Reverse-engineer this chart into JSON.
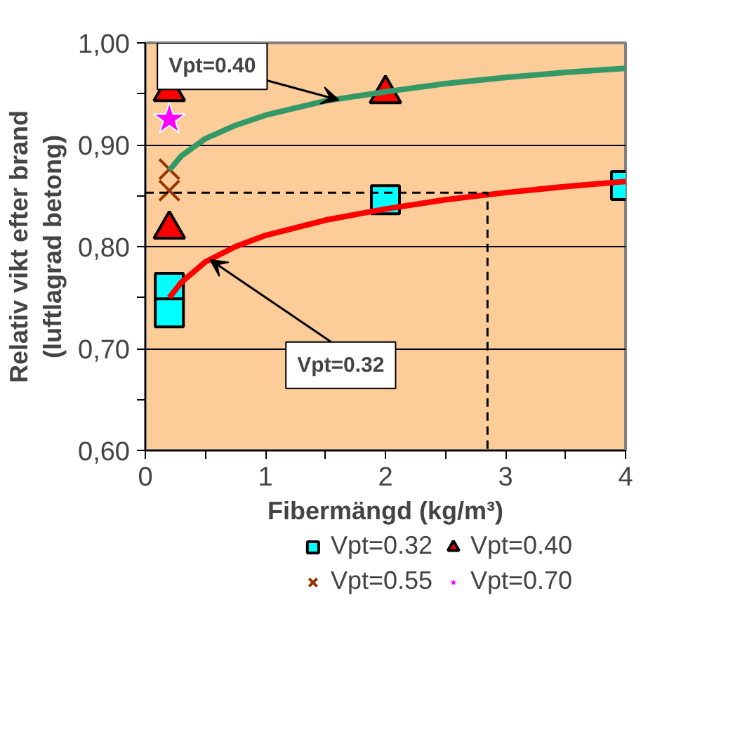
{
  "chart_data": {
    "type": "scatter",
    "xlabel": "Fibermängd (kg/m³)",
    "ylabel": "Relativ vikt efter brand (luftlagrad betong)",
    "xlim": [
      0,
      4
    ],
    "ylim": [
      0.6,
      1.0
    ],
    "xticks": [
      0,
      {
        "value": 0.5,
        "label": null
      },
      1,
      {
        "value": 1.5,
        "label": null
      },
      2,
      {
        "value": 2.5,
        "label": null
      },
      3,
      {
        "value": 3.5,
        "label": null
      },
      4
    ],
    "yticks": [
      {
        "value": 0.6,
        "label": "0,60"
      },
      {
        "value": 0.65,
        "label": null
      },
      {
        "value": 0.7,
        "label": "0,70"
      },
      {
        "value": 0.75,
        "label": null
      },
      {
        "value": 0.8,
        "label": "0,80"
      },
      {
        "value": 0.85,
        "label": null
      },
      {
        "value": 0.9,
        "label": "0,90"
      },
      {
        "value": 0.95,
        "label": null
      },
      {
        "value": 1.0,
        "label": "1,00"
      }
    ],
    "grid": "y",
    "legend": "bottom",
    "series": [
      {
        "name": "Vpt=0.32",
        "color": "#00ffff",
        "marker": "square",
        "x": [
          0.2,
          0.2,
          2,
          4
        ],
        "values": [
          0.76,
          0.735,
          0.846,
          0.86
        ]
      },
      {
        "name": "Vpt=0.40",
        "color": "#ff0000",
        "marker": "triangle",
        "x": [
          0.2,
          0.2,
          2
        ],
        "values": [
          0.952,
          0.817,
          0.95
        ]
      },
      {
        "name": "Vpt=0.55",
        "color": "#993300",
        "marker": "cross",
        "x": [
          0.2,
          0.2
        ],
        "values": [
          0.876,
          0.855
        ]
      },
      {
        "name": "Vpt=0.70",
        "color": "#ff00ff",
        "marker": "star",
        "x": [
          0.2
        ],
        "values": [
          0.925
        ]
      },
      {
        "type": "line",
        "color": "#339966",
        "marker": "none",
        "x": [
          0.2,
          0.3,
          0.5,
          0.75,
          1,
          1.5,
          2,
          2.5,
          3,
          3.5,
          4
        ],
        "values": [
          0.875,
          0.889,
          0.906,
          0.919,
          0.929,
          0.943,
          0.952,
          0.96,
          0.966,
          0.971,
          0.975
        ]
      },
      {
        "type": "line",
        "color": "#ff0000",
        "marker": "none",
        "x": [
          0.2,
          0.3,
          0.5,
          0.75,
          1,
          1.5,
          2,
          2.5,
          3,
          3.5,
          4
        ],
        "values": [
          0.75,
          0.765,
          0.785,
          0.8,
          0.811,
          0.826,
          0.837,
          0.846,
          0.853,
          0.859,
          0.864
        ]
      },
      {
        "type": "line",
        "color": "#000000",
        "marker": "none",
        "line_style": "dashed",
        "x": [
          0,
          2.85,
          2.85
        ],
        "values": [
          0.853,
          0.853,
          0.6
        ]
      }
    ],
    "annotations": [
      {
        "text": "Vpt=0.40",
        "x": 1.61,
        "y": 0.944
      },
      {
        "text": "Vpt=0.32",
        "x": 0.54,
        "y": 0.787
      }
    ]
  }
}
